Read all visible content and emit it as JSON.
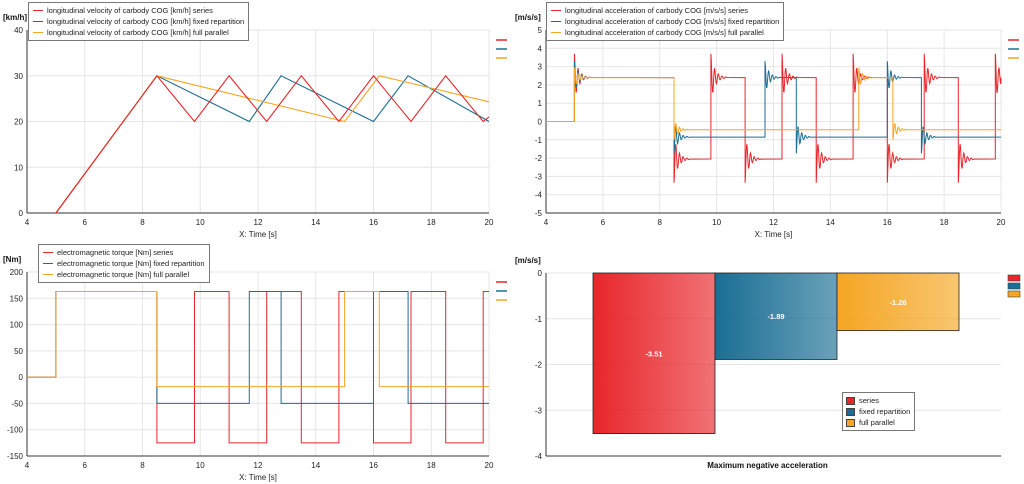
{
  "colors": {
    "series": "#e8262b",
    "fixed": "#1a6e94",
    "parallel": "#f5a623",
    "grid": "#e6e6e6",
    "axis": "#333333"
  },
  "chart_data": [
    {
      "id": "velocity",
      "type": "line",
      "ylabel": "[km/h]",
      "xlabel": "X: Time [s]",
      "xlim": [
        4,
        20
      ],
      "ylim": [
        0,
        40
      ],
      "xticks": [
        4,
        6,
        8,
        10,
        12,
        14,
        16,
        18,
        20
      ],
      "yticks": [
        0,
        10,
        20,
        30,
        40
      ],
      "grid": true,
      "legend_position": "top-left",
      "series": [
        {
          "name": "longitudinal velocity of carbody COG [km/h] series",
          "color_key": "series",
          "points": [
            [
              5,
              0
            ],
            [
              8.5,
              30
            ],
            [
              9.8,
              20
            ],
            [
              11,
              30
            ],
            [
              12.3,
              20
            ],
            [
              13.5,
              30
            ],
            [
              14.8,
              20
            ],
            [
              16,
              30
            ],
            [
              17.3,
              20
            ],
            [
              18.5,
              30
            ],
            [
              19.8,
              20
            ],
            [
              20,
              21
            ]
          ]
        },
        {
          "name": "longitudinal velocity of carbody COG [km/h] fixed repartition",
          "color_key": "fixed",
          "points": [
            [
              5,
              0
            ],
            [
              8.5,
              30
            ],
            [
              11.7,
              20
            ],
            [
              12.8,
              30
            ],
            [
              16,
              20
            ],
            [
              17.2,
              30
            ],
            [
              20,
              20
            ]
          ]
        },
        {
          "name": "longitudinal velocity of carbody COG [km/h] full parallel",
          "color_key": "parallel",
          "points": [
            [
              5,
              0
            ],
            [
              8.5,
              30
            ],
            [
              15,
              20
            ],
            [
              16.2,
              30
            ],
            [
              20,
              24.3
            ]
          ]
        }
      ]
    },
    {
      "id": "acceleration",
      "type": "line",
      "ylabel": "[m/s/s]",
      "xlabel": "X: Time [s]",
      "xlim": [
        4,
        20
      ],
      "ylim": [
        -5,
        5
      ],
      "xticks": [
        4,
        6,
        8,
        10,
        12,
        14,
        16,
        18,
        20
      ],
      "yticks": [
        -5,
        -4,
        -3,
        -2,
        -1,
        0,
        1,
        2,
        3,
        4,
        5
      ],
      "grid": true,
      "legend_position": "top-left",
      "series": [
        {
          "name": "longitudinal acceleration of carbody COG [m/s/s] series",
          "color_key": "series",
          "levels": [
            [
              4,
              0
            ],
            [
              5,
              2.4
            ],
            [
              8.5,
              -2.05
            ],
            [
              9.8,
              2.4
            ],
            [
              11,
              -2.05
            ],
            [
              12.3,
              2.4
            ],
            [
              13.5,
              -2.05
            ],
            [
              14.8,
              2.4
            ],
            [
              16,
              -2.05
            ],
            [
              17.3,
              2.4
            ],
            [
              18.5,
              -2.05
            ],
            [
              19.8,
              2.4
            ]
          ],
          "amp": 1.3
        },
        {
          "name": "longitudinal acceleration of carbody COG [m/s/s] fixed repartition",
          "color_key": "fixed",
          "levels": [
            [
              4,
              0
            ],
            [
              5,
              2.4
            ],
            [
              8.5,
              -0.85
            ],
            [
              11.7,
              2.4
            ],
            [
              12.8,
              -0.85
            ],
            [
              16,
              2.4
            ],
            [
              17.2,
              -0.85
            ]
          ],
          "amp": 0.9
        },
        {
          "name": "longitudinal acceleration of carbody COG [m/s/s] full parallel",
          "color_key": "parallel",
          "levels": [
            [
              4,
              0
            ],
            [
              5,
              2.4
            ],
            [
              8.5,
              -0.45
            ],
            [
              15,
              2.4
            ],
            [
              16.2,
              -0.45
            ]
          ],
          "amp": 0.55
        }
      ]
    },
    {
      "id": "torque",
      "type": "line",
      "ylabel": "[Nm]",
      "xlabel": "X: Time [s]",
      "xlim": [
        4,
        20
      ],
      "ylim": [
        -150,
        200
      ],
      "xticks": [
        4,
        6,
        8,
        10,
        12,
        14,
        16,
        18,
        20
      ],
      "yticks": [
        -150,
        -100,
        -50,
        0,
        50,
        100,
        150,
        200
      ],
      "grid": true,
      "legend_position": "top-left",
      "series": [
        {
          "name": "electromagnetic torque [Nm] series",
          "color_key": "series",
          "levels": [
            [
              4,
              0
            ],
            [
              5,
              163
            ],
            [
              8.5,
              -125
            ],
            [
              9.8,
              163
            ],
            [
              11,
              -125
            ],
            [
              12.3,
              163
            ],
            [
              13.5,
              -125
            ],
            [
              14.8,
              163
            ],
            [
              16,
              -125
            ],
            [
              17.3,
              163
            ],
            [
              18.5,
              -125
            ],
            [
              19.8,
              163
            ]
          ]
        },
        {
          "name": "electromagnetic torque [Nm] fixed repartition",
          "color_key": "fixed",
          "levels": [
            [
              4,
              0
            ],
            [
              5,
              163
            ],
            [
              8.5,
              -50
            ],
            [
              11.7,
              163
            ],
            [
              12.8,
              -50
            ],
            [
              16,
              163
            ],
            [
              17.2,
              -50
            ]
          ]
        },
        {
          "name": "electromagnetic torque [Nm] full parallel",
          "color_key": "parallel",
          "levels": [
            [
              4,
              0
            ],
            [
              5,
              163
            ],
            [
              8.5,
              -18
            ],
            [
              15,
              163
            ],
            [
              16.2,
              -18
            ]
          ]
        }
      ]
    },
    {
      "id": "max_neg_accel",
      "type": "bar",
      "ylabel": "[m/s/s]",
      "xlabel": "Maximum negative acceleration",
      "ylim": [
        -4,
        0
      ],
      "yticks": [
        -4,
        -3,
        -2,
        -1,
        0
      ],
      "grid": true,
      "legend_position": "bottom-right",
      "categories": [
        "series",
        "fixed repartition",
        "full parallel"
      ],
      "values": [
        -3.51,
        -1.89,
        -1.26
      ],
      "value_labels": [
        "-3.51",
        "-1.89",
        "-1.26"
      ],
      "color_keys": [
        "series",
        "fixed",
        "parallel"
      ]
    }
  ]
}
